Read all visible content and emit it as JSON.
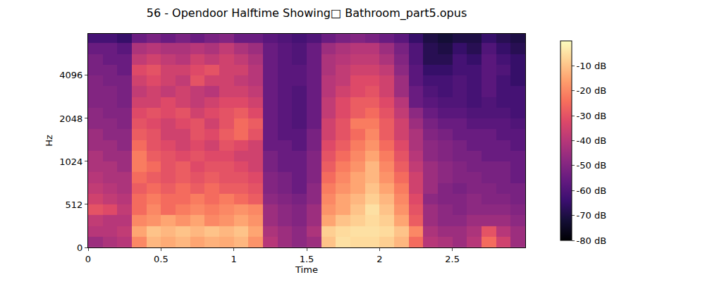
{
  "chart_data": {
    "type": "heatmap",
    "title": "56 - Opendoor Halftime Showing□ Bathroom_part5.opus",
    "x_label": "Time",
    "y_label": "Hz",
    "log": "y",
    "xlim": [
      0,
      3.0
    ],
    "ylim": [
      0,
      8000
    ],
    "xticks": [
      0,
      0.5,
      1,
      1.5,
      2,
      2.5
    ],
    "yticks": [
      0,
      512,
      1024,
      2048,
      4096
    ],
    "colorbar_range": [
      -80,
      0
    ],
    "colorbar_ticks": [
      {
        "value": -80,
        "label": "-80 dB"
      },
      {
        "value": -70,
        "label": "-70 dB"
      },
      {
        "value": -60,
        "label": "-60 dB"
      },
      {
        "value": -50,
        "label": "-50 dB"
      },
      {
        "value": -40,
        "label": "-40 dB"
      },
      {
        "value": -30,
        "label": "-30 dB"
      },
      {
        "value": -20,
        "label": "-20 dB"
      },
      {
        "value": -10,
        "label": "-10 dB"
      }
    ],
    "x": [
      0.05,
      0.15,
      0.25,
      0.35,
      0.45,
      0.55,
      0.65,
      0.75,
      0.85,
      0.95,
      1.05,
      1.15,
      1.25,
      1.35,
      1.45,
      1.55,
      1.65,
      1.75,
      1.85,
      1.95,
      2.05,
      2.15,
      2.25,
      2.35,
      2.45,
      2.55,
      2.65,
      2.75,
      2.85,
      2.95
    ],
    "y": [
      64,
      192,
      320,
      448,
      558,
      665,
      790,
      940,
      1117,
      1329,
      1580,
      1879,
      2234,
      2657,
      3160,
      3758,
      4469,
      5314,
      6320,
      7516
    ],
    "z": [
      [
        -45,
        -42,
        -40,
        -20,
        -12,
        -14,
        -12,
        -15,
        -13,
        -14,
        -12,
        -18,
        -40,
        -45,
        -48,
        -45,
        -10,
        -5,
        -6,
        -6,
        -8,
        -12,
        -25,
        -40,
        -42,
        -45,
        -40,
        -25,
        -35,
        -45
      ],
      [
        -40,
        -40,
        -38,
        -15,
        -10,
        -12,
        -10,
        -12,
        -10,
        -12,
        -10,
        -15,
        -42,
        -45,
        -48,
        -42,
        -8,
        -6,
        -5,
        -5,
        -6,
        -10,
        -20,
        -42,
        -45,
        -45,
        -42,
        -30,
        -40,
        -45
      ],
      [
        -38,
        -40,
        -40,
        -20,
        -18,
        -15,
        -18,
        -15,
        -20,
        -18,
        -15,
        -18,
        -45,
        -48,
        -50,
        -45,
        -15,
        -10,
        -8,
        -6,
        -8,
        -15,
        -28,
        -45,
        -48,
        -48,
        -45,
        -45,
        -45,
        -48
      ],
      [
        -30,
        -32,
        -38,
        -25,
        -20,
        -25,
        -22,
        -20,
        -22,
        -20,
        -18,
        -20,
        -45,
        -48,
        -50,
        -45,
        -18,
        -15,
        -10,
        -5,
        -10,
        -18,
        -30,
        -45,
        -48,
        -50,
        -48,
        -48,
        -48,
        -50
      ],
      [
        -35,
        -38,
        -40,
        -25,
        -22,
        -25,
        -25,
        -22,
        -25,
        -22,
        -25,
        -28,
        -48,
        -50,
        -52,
        -48,
        -20,
        -15,
        -12,
        -8,
        -12,
        -20,
        -32,
        -48,
        -50,
        -50,
        -48,
        -50,
        -50,
        -52
      ],
      [
        -38,
        -40,
        -42,
        -28,
        -25,
        -28,
        -25,
        -28,
        -25,
        -28,
        -28,
        -30,
        -50,
        -52,
        -55,
        -48,
        -22,
        -18,
        -15,
        -10,
        -15,
        -22,
        -35,
        -45,
        -50,
        -52,
        -50,
        -50,
        -52,
        -52
      ],
      [
        -40,
        -42,
        -42,
        -25,
        -28,
        -30,
        -28,
        -30,
        -28,
        -30,
        -30,
        -32,
        -50,
        -52,
        -55,
        -50,
        -25,
        -20,
        -15,
        -12,
        -18,
        -25,
        -35,
        -45,
        -48,
        -50,
        -50,
        -52,
        -52,
        -55
      ],
      [
        -42,
        -42,
        -45,
        -22,
        -25,
        -30,
        -28,
        -32,
        -30,
        -30,
        -32,
        -35,
        -52,
        -55,
        -55,
        -50,
        -28,
        -22,
        -18,
        -12,
        -20,
        -28,
        -38,
        -45,
        -48,
        -50,
        -52,
        -52,
        -52,
        -55
      ],
      [
        -42,
        -45,
        -45,
        -22,
        -28,
        -30,
        -32,
        -30,
        -32,
        -32,
        -35,
        -35,
        -52,
        -55,
        -55,
        -50,
        -30,
        -25,
        -20,
        -15,
        -22,
        -30,
        -40,
        -48,
        -50,
        -52,
        -52,
        -55,
        -55,
        -55
      ],
      [
        -45,
        -45,
        -48,
        -25,
        -30,
        -32,
        -35,
        -32,
        -35,
        -30,
        -32,
        -35,
        -55,
        -55,
        -58,
        -52,
        -32,
        -28,
        -22,
        -18,
        -25,
        -32,
        -42,
        -48,
        -50,
        -52,
        -55,
        -55,
        -55,
        -58
      ],
      [
        -45,
        -48,
        -48,
        -28,
        -30,
        -35,
        -35,
        -30,
        -32,
        -28,
        -25,
        -30,
        -55,
        -58,
        -58,
        -52,
        -35,
        -30,
        -25,
        -20,
        -28,
        -35,
        -42,
        -50,
        -52,
        -55,
        -55,
        -55,
        -58,
        -58
      ],
      [
        -48,
        -48,
        -50,
        -30,
        -32,
        -35,
        -32,
        -30,
        -35,
        -30,
        -25,
        -28,
        -55,
        -58,
        -60,
        -55,
        -35,
        -30,
        -22,
        -22,
        -28,
        -35,
        -45,
        -52,
        -55,
        -55,
        -58,
        -58,
        -58,
        -60
      ],
      [
        -48,
        -50,
        -50,
        -32,
        -30,
        -32,
        -30,
        -35,
        -32,
        -30,
        -28,
        -32,
        -55,
        -58,
        -60,
        -55,
        -38,
        -32,
        -28,
        -25,
        -30,
        -38,
        -48,
        -55,
        -58,
        -58,
        -60,
        -60,
        -60,
        -62
      ],
      [
        -50,
        -50,
        -52,
        -35,
        -35,
        -32,
        -35,
        -38,
        -35,
        -32,
        -32,
        -35,
        -55,
        -58,
        -60,
        -55,
        -38,
        -32,
        -28,
        -28,
        -32,
        -40,
        -55,
        -58,
        -60,
        -60,
        -62,
        -60,
        -62,
        -62
      ],
      [
        -50,
        -50,
        -52,
        -38,
        -35,
        -38,
        -35,
        -38,
        -40,
        -35,
        -35,
        -38,
        -55,
        -58,
        -60,
        -55,
        -40,
        -35,
        -32,
        -30,
        -35,
        -45,
        -55,
        -60,
        -62,
        -60,
        -62,
        -58,
        -62,
        -62
      ],
      [
        -50,
        -52,
        -52,
        -35,
        -32,
        -35,
        -38,
        -30,
        -35,
        -35,
        -38,
        -40,
        -55,
        -58,
        -58,
        -55,
        -40,
        -38,
        -32,
        -32,
        -35,
        -45,
        -58,
        -62,
        -62,
        -60,
        -62,
        -58,
        -62,
        -65
      ],
      [
        -52,
        -52,
        -55,
        -32,
        -30,
        -35,
        -35,
        -32,
        -30,
        -35,
        -35,
        -40,
        -55,
        -58,
        -58,
        -55,
        -42,
        -38,
        -35,
        -35,
        -38,
        -48,
        -58,
        -65,
        -65,
        -62,
        -62,
        -58,
        -60,
        -65
      ],
      [
        -52,
        -55,
        -55,
        -38,
        -35,
        -38,
        -40,
        -35,
        -38,
        -35,
        -38,
        -42,
        -55,
        -58,
        -60,
        -55,
        -42,
        -40,
        -38,
        -38,
        -42,
        -50,
        -60,
        -68,
        -68,
        -62,
        -65,
        -58,
        -62,
        -65
      ],
      [
        -55,
        -55,
        -58,
        -42,
        -40,
        -42,
        -42,
        -40,
        -42,
        -38,
        -42,
        -45,
        -55,
        -58,
        -60,
        -55,
        -45,
        -42,
        -40,
        -40,
        -45,
        -52,
        -60,
        -68,
        -70,
        -65,
        -68,
        -60,
        -65,
        -68
      ],
      [
        -62,
        -62,
        -65,
        -55,
        -52,
        -55,
        -52,
        -55,
        -52,
        -50,
        -55,
        -55,
        -58,
        -60,
        -62,
        -60,
        -55,
        -52,
        -50,
        -52,
        -55,
        -58,
        -65,
        -70,
        -72,
        -70,
        -70,
        -65,
        -68,
        -70
      ]
    ]
  }
}
